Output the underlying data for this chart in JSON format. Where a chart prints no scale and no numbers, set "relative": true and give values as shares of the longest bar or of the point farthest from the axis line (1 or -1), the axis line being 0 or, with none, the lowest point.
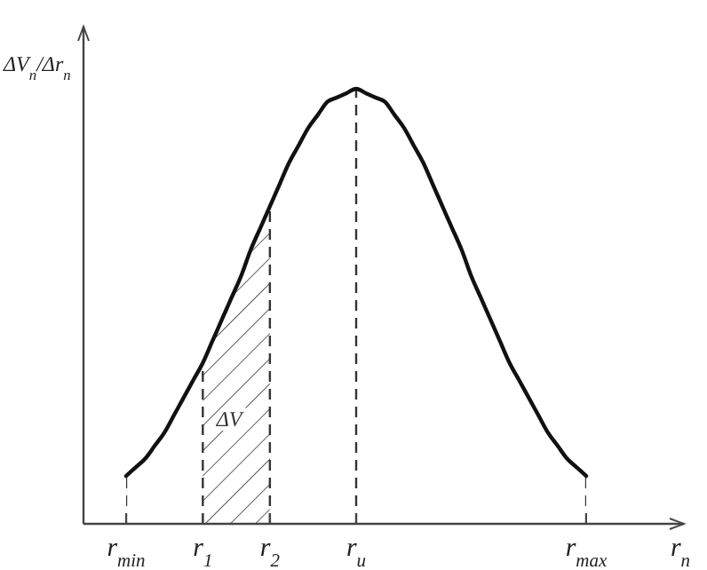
{
  "chart_data": {
    "type": "line",
    "relative": true,
    "ylabel": "ΔV$_{n}$/Δr$_{n}$",
    "xlabel": "r$_{n}$",
    "categories": [
      "r$_{min}$",
      null,
      null,
      null,
      null,
      null,
      null,
      null,
      "r$_{1}$",
      null,
      null,
      null,
      null,
      null,
      null,
      "r$_{2}$",
      null,
      null,
      null,
      null,
      null,
      null,
      null,
      null,
      "r$_{u}$",
      null,
      null,
      null,
      null,
      null,
      null,
      null,
      null,
      null,
      null,
      null,
      null,
      null,
      null,
      null,
      null,
      null,
      null,
      null,
      null,
      null,
      null,
      null,
      "r$_{max}$"
    ],
    "series": [
      {
        "color": "#111111",
        "line_style": "solid",
        "values": [
          0.11,
          0.13,
          0.15,
          0.18,
          0.21,
          0.25,
          0.29,
          0.33,
          0.37,
          0.42,
          0.47,
          0.52,
          0.57,
          0.63,
          0.68,
          0.73,
          0.78,
          0.83,
          0.87,
          0.91,
          0.94,
          0.97,
          0.98,
          0.99,
          1,
          0.99,
          0.98,
          0.97,
          0.94,
          0.91,
          0.87,
          0.83,
          0.78,
          0.73,
          0.68,
          0.63,
          0.57,
          0.52,
          0.47,
          0.42,
          0.37,
          0.33,
          0.29,
          0.25,
          0.21,
          0.18,
          0.15,
          0.13,
          0.11
        ]
      }
    ],
    "ref_lines": [
      {
        "axis": "x",
        "value": "r$_{min}$",
        "line_style": "dashed"
      },
      {
        "axis": "x",
        "value": "r$_{1}$",
        "line_style": "dashed"
      },
      {
        "axis": "x",
        "value": "r$_{2}$",
        "line_style": "dashed"
      },
      {
        "axis": "x",
        "value": "r$_{u}$",
        "line_style": "dashed"
      },
      {
        "axis": "x",
        "value": "r$_{max}$",
        "line_style": "dashed"
      }
    ],
    "bands": [
      {
        "axis": "x",
        "from": "r$_{1}$",
        "to": "r$_{2}$",
        "label": "ΔV"
      }
    ]
  }
}
